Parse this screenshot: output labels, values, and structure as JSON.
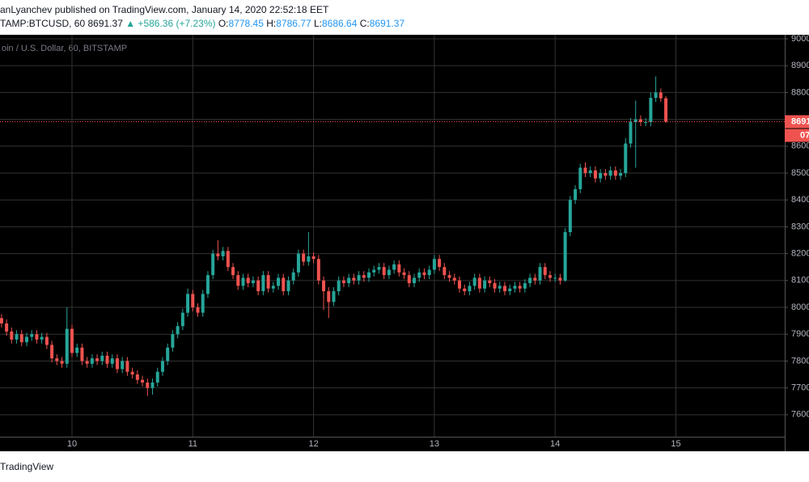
{
  "publish_line": "anLyanchev published on TradingView.com, January 14, 2020 22:52:18 EET",
  "symbol_line": {
    "symbol": "TAMP:BTCUSD, 60",
    "change": "▲ +586.36 (+7.23%)",
    "o": "O:",
    "h": "H:",
    "l": "L:",
    "c": "C:"
  },
  "watermark": "TradingView",
  "chart_data": {
    "type": "candlestick",
    "title": "oin / U.S. Dollar, 60, BITSTAMP",
    "up_color": "#26a69a",
    "down_color": "#ef5350",
    "grid": true,
    "countdown": "07",
    "xlim": [
      9.404,
      15.901
    ],
    "xticks": [
      10,
      11,
      12,
      13,
      14,
      15
    ],
    "ylim": [
      7464,
      9015
    ],
    "yticks": [
      7600,
      7700,
      7800,
      7900,
      8000,
      8100,
      8200,
      8300,
      8400,
      8500,
      8600,
      8700,
      8800,
      8900,
      9000
    ],
    "x": [
      9.4167,
      9.4583,
      9.5,
      9.5417,
      9.5833,
      9.625,
      9.6667,
      9.7083,
      9.75,
      9.7917,
      9.8333,
      9.875,
      9.9167,
      9.9583,
      10,
      10.0417,
      10.0833,
      10.125,
      10.1667,
      10.2083,
      10.25,
      10.2917,
      10.3333,
      10.375,
      10.4167,
      10.4583,
      10.5,
      10.5417,
      10.5833,
      10.625,
      10.6667,
      10.7083,
      10.75,
      10.7917,
      10.8333,
      10.875,
      10.9167,
      10.9583,
      11,
      11.0417,
      11.0833,
      11.125,
      11.1667,
      11.2083,
      11.25,
      11.2917,
      11.3333,
      11.375,
      11.4167,
      11.4583,
      11.5,
      11.5417,
      11.5833,
      11.625,
      11.6667,
      11.7083,
      11.75,
      11.7917,
      11.8333,
      11.875,
      11.9167,
      11.9583,
      12,
      12.0417,
      12.0833,
      12.125,
      12.1667,
      12.2083,
      12.25,
      12.2917,
      12.3333,
      12.375,
      12.4167,
      12.4583,
      12.5,
      12.5417,
      12.5833,
      12.625,
      12.6667,
      12.7083,
      12.75,
      12.7917,
      12.8333,
      12.875,
      12.9167,
      12.9583,
      13,
      13.0417,
      13.0833,
      13.125,
      13.1667,
      13.2083,
      13.25,
      13.2917,
      13.3333,
      13.375,
      13.4167,
      13.4583,
      13.5,
      13.5417,
      13.5833,
      13.625,
      13.6667,
      13.7083,
      13.75,
      13.7917,
      13.8333,
      13.875,
      13.9167,
      13.9583,
      14,
      14.0417,
      14.0833,
      14.125,
      14.1667,
      14.2083,
      14.25,
      14.2917,
      14.3333,
      14.375,
      14.4167,
      14.4583,
      14.5,
      14.5417,
      14.5833,
      14.625,
      14.6667,
      14.7083,
      14.75,
      14.7917,
      14.8333,
      14.875,
      14.9167
    ],
    "open": [
      7960,
      7940,
      7910,
      7880,
      7900,
      7870,
      7890,
      7900,
      7880,
      7890,
      7860,
      7810,
      7800,
      7790,
      7920,
      7830,
      7850,
      7800,
      7790,
      7810,
      7800,
      7820,
      7790,
      7810,
      7770,
      7800,
      7760,
      7750,
      7730,
      7720,
      7700,
      7720,
      7760,
      7800,
      7850,
      7900,
      7930,
      7980,
      8050,
      8000,
      7980,
      8050,
      8120,
      8200,
      8190,
      8210,
      8150,
      8120,
      8080,
      8110,
      8090,
      8100,
      8060,
      8120,
      8070,
      8080,
      8110,
      8060,
      8100,
      8130,
      8200,
      8170,
      8190,
      8180,
      8100,
      8060,
      8020,
      8060,
      8100,
      8090,
      8110,
      8100,
      8120,
      8110,
      8130,
      8140,
      8150,
      8120,
      8140,
      8160,
      8130,
      8120,
      8090,
      8110,
      8130,
      8120,
      8140,
      8180,
      8150,
      8120,
      8110,
      8100,
      8070,
      8060,
      8080,
      8110,
      8070,
      8100,
      8090,
      8070,
      8080,
      8060,
      8070,
      8080,
      8070,
      8090,
      8110,
      8100,
      8150,
      8120,
      8110,
      8110,
      8100,
      8280,
      8400,
      8440,
      8520,
      8500,
      8510,
      8480,
      8500,
      8490,
      8510,
      8490,
      8500,
      8610,
      8690,
      8700,
      8690,
      8690,
      8780,
      8800,
      8778.45
    ],
    "high": [
      7975,
      7955,
      7925,
      7915,
      7915,
      7905,
      7915,
      7915,
      7905,
      7905,
      7875,
      7825,
      7815,
      8000,
      7935,
      7865,
      7865,
      7815,
      7825,
      7825,
      7835,
      7835,
      7825,
      7825,
      7815,
      7815,
      7775,
      7765,
      7745,
      7735,
      7735,
      7775,
      7815,
      7865,
      7915,
      7945,
      7995,
      8070,
      8065,
      8015,
      8065,
      8135,
      8215,
      8250,
      8225,
      8225,
      8165,
      8135,
      8125,
      8125,
      8115,
      8115,
      8135,
      8135,
      8095,
      8125,
      8125,
      8115,
      8145,
      8215,
      8215,
      8280,
      8205,
      8195,
      8115,
      8075,
      8075,
      8115,
      8115,
      8125,
      8125,
      8135,
      8135,
      8145,
      8155,
      8165,
      8165,
      8155,
      8175,
      8175,
      8145,
      8135,
      8125,
      8145,
      8145,
      8155,
      8195,
      8195,
      8165,
      8135,
      8125,
      8115,
      8085,
      8095,
      8125,
      8125,
      8115,
      8115,
      8105,
      8095,
      8095,
      8085,
      8095,
      8095,
      8105,
      8125,
      8125,
      8165,
      8165,
      8135,
      8125,
      8125,
      8295,
      8415,
      8455,
      8535,
      8540,
      8525,
      8525,
      8515,
      8515,
      8525,
      8525,
      8515,
      8630,
      8705,
      8770,
      8715,
      8705,
      8800,
      8860,
      8815,
      8786.77
    ],
    "low": [
      7925,
      7895,
      7865,
      7865,
      7855,
      7855,
      7875,
      7865,
      7865,
      7845,
      7795,
      7785,
      7775,
      7775,
      7815,
      7815,
      7785,
      7775,
      7775,
      7785,
      7785,
      7775,
      7775,
      7755,
      7755,
      7745,
      7735,
      7715,
      7705,
      7670,
      7675,
      7705,
      7745,
      7785,
      7835,
      7885,
      7915,
      7965,
      7985,
      7965,
      7965,
      8035,
      8105,
      8175,
      8175,
      8135,
      8105,
      8065,
      8065,
      8075,
      8075,
      8045,
      8045,
      8055,
      8055,
      8065,
      8045,
      8045,
      8085,
      8115,
      8155,
      8155,
      8165,
      8085,
      7990,
      7960,
      8005,
      8045,
      8075,
      8075,
      8085,
      8085,
      8095,
      8095,
      8115,
      8125,
      8105,
      8105,
      8125,
      8115,
      8105,
      8075,
      8075,
      8095,
      8105,
      8105,
      8125,
      8135,
      8105,
      8095,
      8085,
      8055,
      8045,
      8045,
      8065,
      8055,
      8055,
      8075,
      8055,
      8055,
      8045,
      8045,
      8055,
      8055,
      8055,
      8075,
      8085,
      8085,
      8105,
      8095,
      8095,
      8085,
      8095,
      8265,
      8385,
      8425,
      8485,
      8485,
      8465,
      8465,
      8475,
      8475,
      8475,
      8475,
      8485,
      8595,
      8520,
      8675,
      8675,
      8675,
      8765,
      8765,
      8686.64
    ],
    "close": [
      7940,
      7910,
      7880,
      7900,
      7870,
      7890,
      7900,
      7880,
      7890,
      7860,
      7810,
      7800,
      7790,
      7920,
      7830,
      7850,
      7800,
      7790,
      7810,
      7800,
      7820,
      7790,
      7810,
      7770,
      7800,
      7760,
      7750,
      7730,
      7720,
      7700,
      7720,
      7760,
      7800,
      7850,
      7900,
      7930,
      7980,
      8050,
      8000,
      7980,
      8050,
      8120,
      8200,
      8190,
      8210,
      8150,
      8120,
      8080,
      8110,
      8090,
      8100,
      8060,
      8120,
      8070,
      8080,
      8110,
      8060,
      8100,
      8130,
      8200,
      8170,
      8190,
      8180,
      8100,
      8060,
      8020,
      8060,
      8100,
      8090,
      8110,
      8100,
      8120,
      8110,
      8130,
      8140,
      8150,
      8120,
      8140,
      8160,
      8130,
      8120,
      8090,
      8110,
      8130,
      8120,
      8140,
      8180,
      8150,
      8120,
      8110,
      8100,
      8070,
      8060,
      8080,
      8110,
      8070,
      8100,
      8090,
      8070,
      8080,
      8060,
      8070,
      8080,
      8070,
      8090,
      8110,
      8100,
      8150,
      8120,
      8110,
      8110,
      8100,
      8280,
      8400,
      8440,
      8520,
      8500,
      8510,
      8480,
      8500,
      8490,
      8510,
      8490,
      8500,
      8610,
      8690,
      8700,
      8690,
      8690,
      8780,
      8800,
      8778.45,
      8691.37
    ]
  }
}
